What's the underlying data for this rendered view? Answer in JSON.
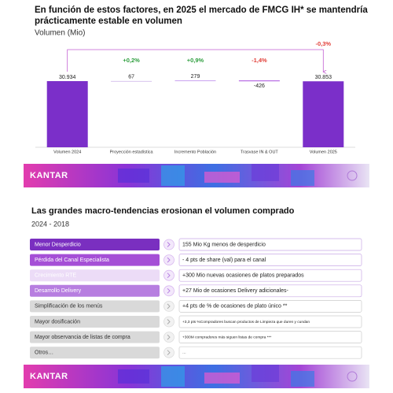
{
  "header": {
    "title_lines": [
      "En función de estos factores, en 2025 el mercado de FMCG IH* se mantendría",
      "prácticamente estable en volumen"
    ],
    "subtitle": "Volumen (Mio)"
  },
  "chart_data": {
    "type": "waterfall",
    "categories": [
      "Volumen 2024",
      "Proyección estadística",
      "Incremento Población",
      "Trasvase IN & OUT",
      "Volumen 2025"
    ],
    "values": [
      30934,
      67,
      279,
      -426,
      30853
    ],
    "value_labels": [
      "30.934",
      "67",
      "279",
      "-426",
      "30.853"
    ],
    "totals": [
      true,
      false,
      false,
      false,
      true
    ],
    "colors": [
      "#7b2fc9",
      "#d7c3ec",
      "#c9a0f0",
      "#b566e3",
      "#7b2fc9"
    ],
    "change_labels": [
      "+0,2%",
      "+0,9%",
      "-1,4%",
      "-0,3%"
    ],
    "change_colors": [
      "#2e9e3e",
      "#2e9e3e",
      "#e2413a",
      "#e2413a"
    ]
  },
  "banners": [
    {
      "logo": "KANTAR"
    },
    {
      "logo": "KANTAR"
    }
  ],
  "trends": {
    "title": "Las grandes macro-tendencias erosionan el volumen comprado",
    "period": "2024 - 2018",
    "rows": [
      {
        "driver": "Menor Desperdicio",
        "impact": "155 Mio Kg menos de desperdicio",
        "fill": "#7a2fc0",
        "text_color": "#ffffff"
      },
      {
        "driver": "Pérdida del Canal Especialista",
        "impact": "- 4 pts de share (val) para el canal",
        "fill": "#a54fd6",
        "text_color": "#ffffff"
      },
      {
        "driver": "Crecimiento RTE",
        "impact": "+300 Mio nuevas ocasiones de platos preparados",
        "fill": "#ecdcf7",
        "text_color": "#ffffff"
      },
      {
        "driver": "Desarrollo Delivery",
        "impact": "+27 Mio de ocasiones Delivery adicionales-",
        "fill": "#b77ee0",
        "text_color": "#ffffff"
      },
      {
        "driver": "Simplificación de los menús",
        "impact": "+4 pts de % de ocasiones de plato único **",
        "fill": "#d9d9d9",
        "text_color": "#333333"
      },
      {
        "driver": "Mayor dosificación",
        "impact": "+3,3 pts %Compradores buscan productos de Limpieza que duren y cundan",
        "fill": "#d9d9d9",
        "text_color": "#333333"
      },
      {
        "driver": "Mayor observancia de listas de compra",
        "impact": "+300M compradores más siguen listas de compra ***",
        "fill": "#d9d9d9",
        "text_color": "#333333"
      },
      {
        "driver": "Otros…",
        "impact": "…",
        "fill": "#d9d9d9",
        "text_color": "#333333"
      }
    ]
  }
}
